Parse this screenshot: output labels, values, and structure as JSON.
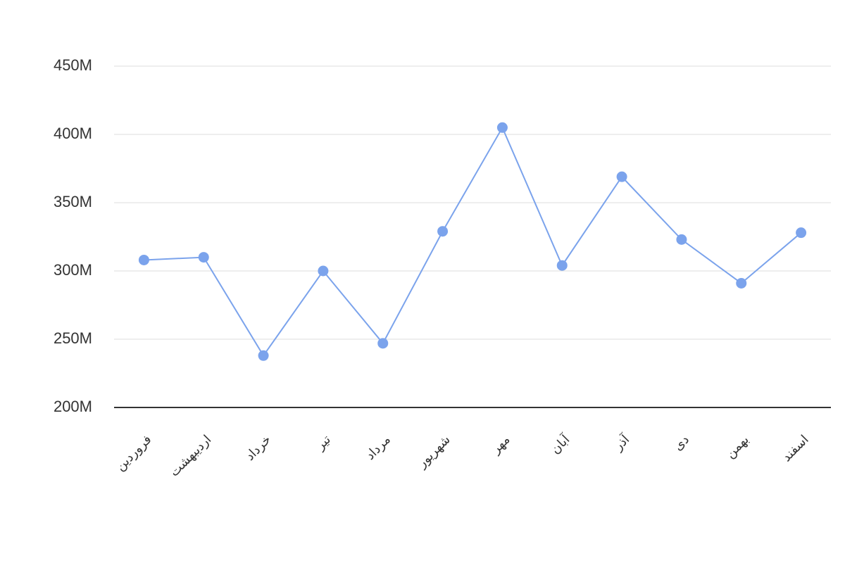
{
  "chart_data": {
    "type": "line",
    "categories": [
      "فروردین",
      "اردیبهشت",
      "خرداد",
      "تیر",
      "مرداد",
      "شهریور",
      "مهر",
      "آبان",
      "آذر",
      "دی",
      "بهمن",
      "اسفند"
    ],
    "values": [
      308000000,
      310000000,
      238000000,
      300000000,
      247000000,
      329000000,
      405000000,
      304000000,
      369000000,
      323000000,
      291000000,
      328000000
    ],
    "color": "#7ba3ec",
    "ylim": [
      200000000,
      450000000
    ],
    "yticks": [
      {
        "value": 200000000,
        "label": "200M"
      },
      {
        "value": 250000000,
        "label": "250M"
      },
      {
        "value": 300000000,
        "label": "300M"
      },
      {
        "value": 350000000,
        "label": "350M"
      },
      {
        "value": 400000000,
        "label": "400M"
      },
      {
        "value": 450000000,
        "label": "450M"
      }
    ],
    "grid": true
  }
}
